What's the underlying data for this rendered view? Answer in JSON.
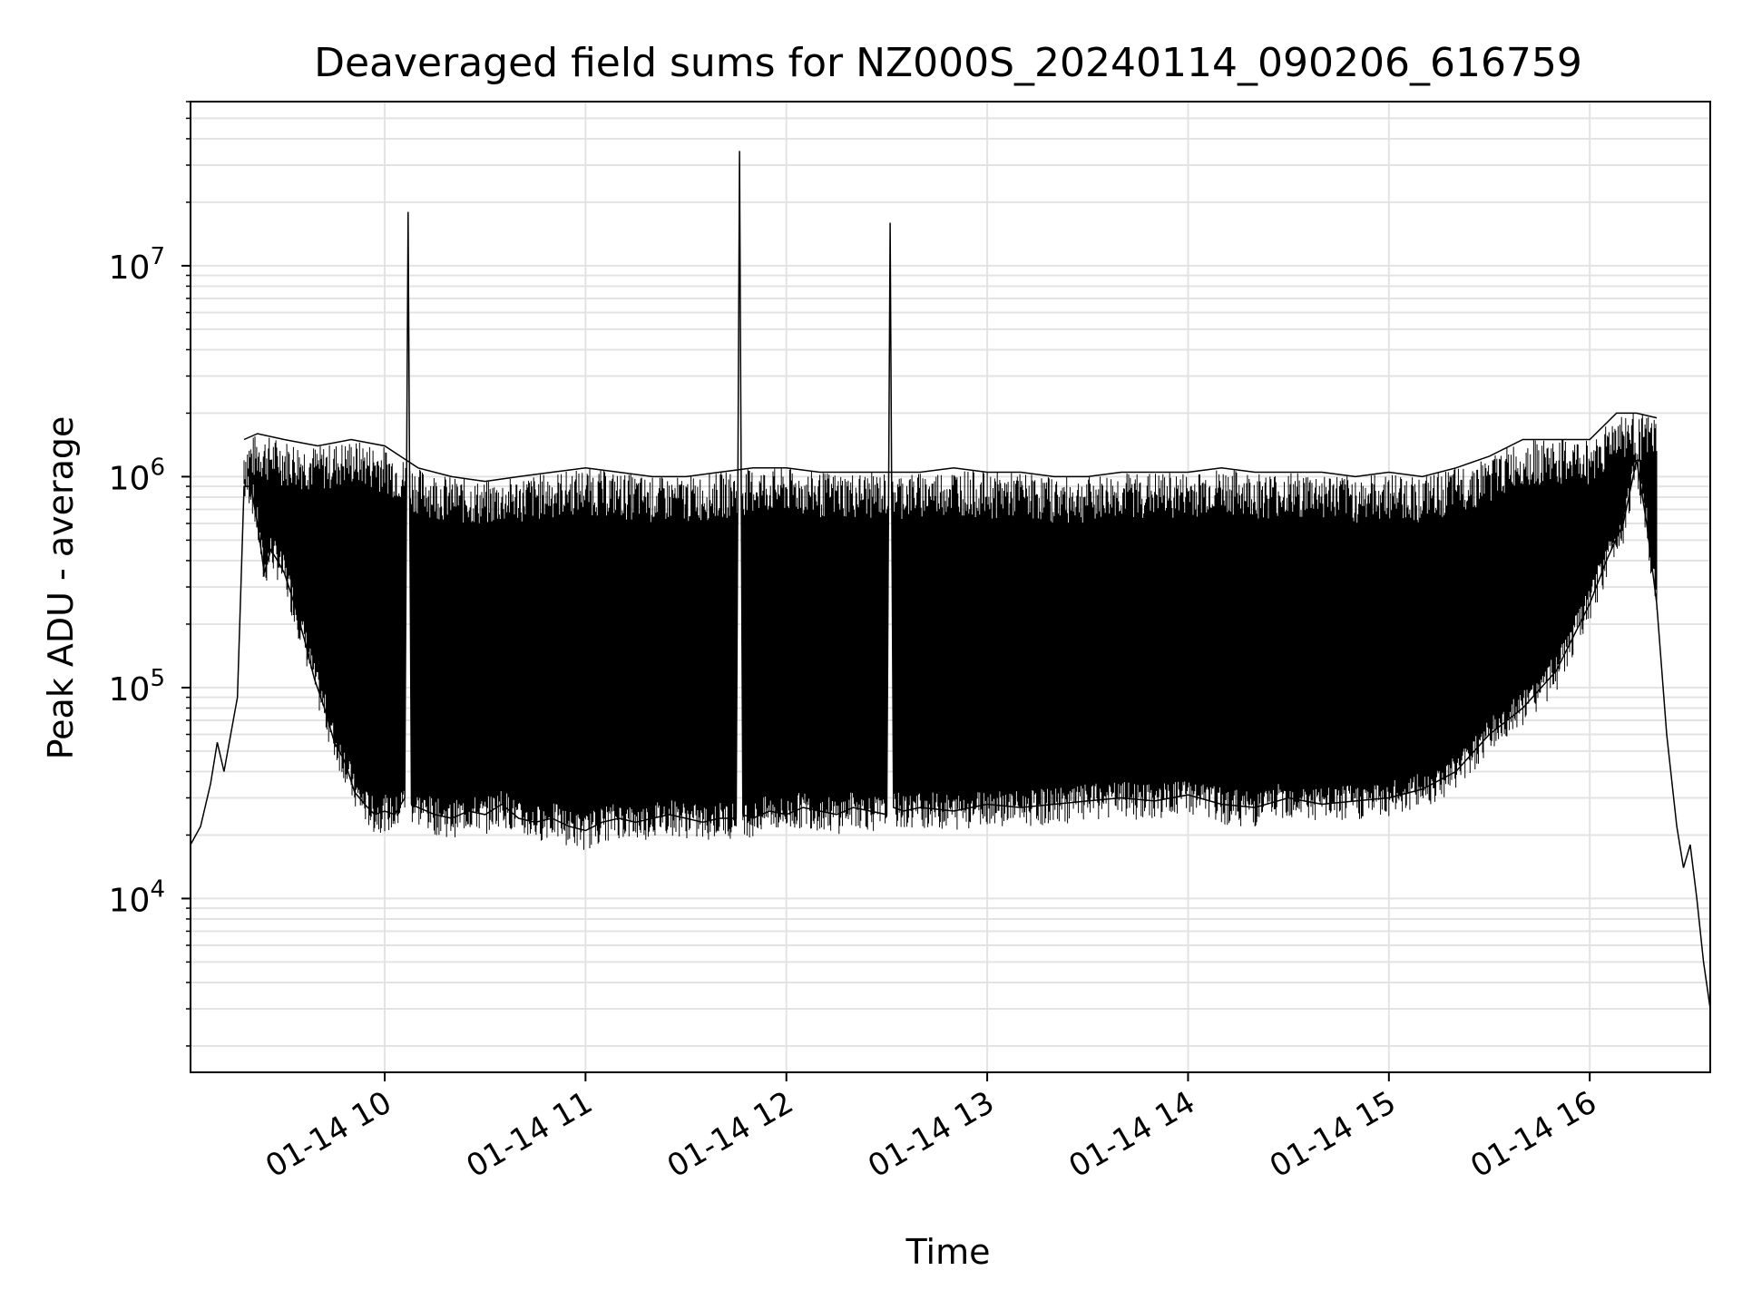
{
  "chart_data": {
    "type": "line",
    "title": "Deaveraged field sums for NZ000S_20240114_090206_616759",
    "xlabel": "Time",
    "ylabel": "Peak ADU - average",
    "y_scale": "log",
    "ylim": [
      1500,
      60000000
    ],
    "xlim": [
      "2024-01-14 09:02",
      "2024-01-14 16:36"
    ],
    "x_ticks": [
      "2024-01-14 10:00",
      "2024-01-14 11:00",
      "2024-01-14 12:00",
      "2024-01-14 13:00",
      "2024-01-14 14:00",
      "2024-01-14 15:00",
      "2024-01-14 16:00"
    ],
    "x_tick_labels": [
      "01-14 10",
      "01-14 11",
      "01-14 12",
      "01-14 13",
      "01-14 14",
      "01-14 15",
      "01-14 16"
    ],
    "y_ticks": [
      10000,
      100000,
      1000000,
      10000000
    ],
    "y_tick_bases": [
      "10",
      "10",
      "10",
      "10"
    ],
    "y_tick_exponents": [
      "4",
      "5",
      "6",
      "7"
    ],
    "grid": true,
    "line_color": "#000000",
    "grid_color": "#e3e3e3",
    "series": [
      {
        "x": [
          "2024-01-14 09:02",
          "2024-01-14 09:05",
          "2024-01-14 09:08",
          "2024-01-14 09:10",
          "2024-01-14 09:12",
          "2024-01-14 09:14",
          "2024-01-14 09:16",
          "2024-01-14 09:18",
          "2024-01-14 09:20",
          "2024-01-14 09:22",
          "2024-01-14 09:24",
          "2024-01-14 09:26",
          "2024-01-14 09:28",
          "2024-01-14 09:30",
          "2024-01-14 09:33",
          "2024-01-14 09:36",
          "2024-01-14 09:39",
          "2024-01-14 09:42",
          "2024-01-14 09:45",
          "2024-01-14 09:48",
          "2024-01-14 09:51",
          "2024-01-14 09:54",
          "2024-01-14 09:57",
          "2024-01-14 10:00",
          "2024-01-14 10:03",
          "2024-01-14 10:06",
          "2024-01-14 10:07",
          "2024-01-14 10:08",
          "2024-01-14 10:10",
          "2024-01-14 10:15",
          "2024-01-14 10:20",
          "2024-01-14 10:25",
          "2024-01-14 10:30",
          "2024-01-14 10:35",
          "2024-01-14 10:40",
          "2024-01-14 10:45",
          "2024-01-14 10:50",
          "2024-01-14 10:55",
          "2024-01-14 11:00",
          "2024-01-14 11:05",
          "2024-01-14 11:10",
          "2024-01-14 11:15",
          "2024-01-14 11:20",
          "2024-01-14 11:25",
          "2024-01-14 11:30",
          "2024-01-14 11:35",
          "2024-01-14 11:40",
          "2024-01-14 11:45",
          "2024-01-14 11:46",
          "2024-01-14 11:47",
          "2024-01-14 11:50",
          "2024-01-14 11:55",
          "2024-01-14 12:00",
          "2024-01-14 12:05",
          "2024-01-14 12:10",
          "2024-01-14 12:15",
          "2024-01-14 12:20",
          "2024-01-14 12:25",
          "2024-01-14 12:30",
          "2024-01-14 12:31",
          "2024-01-14 12:32",
          "2024-01-14 12:35",
          "2024-01-14 12:40",
          "2024-01-14 12:50",
          "2024-01-14 13:00",
          "2024-01-14 13:10",
          "2024-01-14 13:20",
          "2024-01-14 13:30",
          "2024-01-14 13:40",
          "2024-01-14 13:50",
          "2024-01-14 14:00",
          "2024-01-14 14:10",
          "2024-01-14 14:20",
          "2024-01-14 14:30",
          "2024-01-14 14:40",
          "2024-01-14 14:50",
          "2024-01-14 15:00",
          "2024-01-14 15:10",
          "2024-01-14 15:20",
          "2024-01-14 15:30",
          "2024-01-14 15:40",
          "2024-01-14 15:50",
          "2024-01-14 16:00",
          "2024-01-14 16:05",
          "2024-01-14 16:10",
          "2024-01-14 16:14",
          "2024-01-14 16:17",
          "2024-01-14 16:20",
          "2024-01-14 16:23",
          "2024-01-14 16:26",
          "2024-01-14 16:28",
          "2024-01-14 16:30",
          "2024-01-14 16:32",
          "2024-01-14 16:34",
          "2024-01-14 16:36"
        ],
        "y": [
          18000,
          22000,
          35000,
          55000,
          40000,
          60000,
          90000,
          900000,
          900000,
          600000,
          350000,
          450000,
          400000,
          350000,
          250000,
          170000,
          110000,
          80000,
          55000,
          45000,
          32000,
          28000,
          25000,
          26000,
          25000,
          30000,
          18000000,
          28000,
          27000,
          25000,
          24000,
          26000,
          25000,
          28000,
          24000,
          23000,
          24000,
          22000,
          21000,
          23000,
          24000,
          23000,
          24000,
          25000,
          24000,
          23000,
          24000,
          24000,
          35000000,
          25000,
          24000,
          26000,
          25000,
          27000,
          26000,
          25000,
          27000,
          26000,
          25000,
          16000000,
          27000,
          26000,
          27000,
          26000,
          28000,
          27000,
          28000,
          29000,
          30000,
          29000,
          31000,
          28000,
          27000,
          30000,
          28000,
          29000,
          30000,
          33000,
          40000,
          60000,
          80000,
          120000,
          250000,
          400000,
          600000,
          1200000,
          600000,
          250000,
          60000,
          22000,
          14000,
          18000,
          10000,
          5000,
          3000
        ]
      },
      {
        "x": [
          "2024-01-14 09:18",
          "2024-01-14 09:22",
          "2024-01-14 09:30",
          "2024-01-14 09:40",
          "2024-01-14 09:50",
          "2024-01-14 10:00",
          "2024-01-14 10:10",
          "2024-01-14 10:20",
          "2024-01-14 10:30",
          "2024-01-14 10:40",
          "2024-01-14 10:50",
          "2024-01-14 11:00",
          "2024-01-14 11:10",
          "2024-01-14 11:20",
          "2024-01-14 11:30",
          "2024-01-14 11:40",
          "2024-01-14 11:50",
          "2024-01-14 12:00",
          "2024-01-14 12:10",
          "2024-01-14 12:20",
          "2024-01-14 12:30",
          "2024-01-14 12:40",
          "2024-01-14 12:50",
          "2024-01-14 13:00",
          "2024-01-14 13:10",
          "2024-01-14 13:20",
          "2024-01-14 13:30",
          "2024-01-14 13:40",
          "2024-01-14 13:50",
          "2024-01-14 14:00",
          "2024-01-14 14:10",
          "2024-01-14 14:20",
          "2024-01-14 14:30",
          "2024-01-14 14:40",
          "2024-01-14 14:50",
          "2024-01-14 15:00",
          "2024-01-14 15:10",
          "2024-01-14 15:20",
          "2024-01-14 15:30",
          "2024-01-14 15:40",
          "2024-01-14 15:50",
          "2024-01-14 16:00",
          "2024-01-14 16:08",
          "2024-01-14 16:14",
          "2024-01-14 16:20"
        ],
        "y": [
          1500000,
          1600000,
          1500000,
          1400000,
          1500000,
          1400000,
          1100000,
          1000000,
          950000,
          1000000,
          1050000,
          1100000,
          1050000,
          1000000,
          1000000,
          1050000,
          1100000,
          1100000,
          1050000,
          1050000,
          1050000,
          1050000,
          1100000,
          1050000,
          1050000,
          1000000,
          1000000,
          1050000,
          1050000,
          1050000,
          1100000,
          1050000,
          1050000,
          1050000,
          1000000,
          1050000,
          1000000,
          1100000,
          1250000,
          1500000,
          1500000,
          1500000,
          2000000,
          2000000,
          1900000
        ]
      }
    ]
  }
}
